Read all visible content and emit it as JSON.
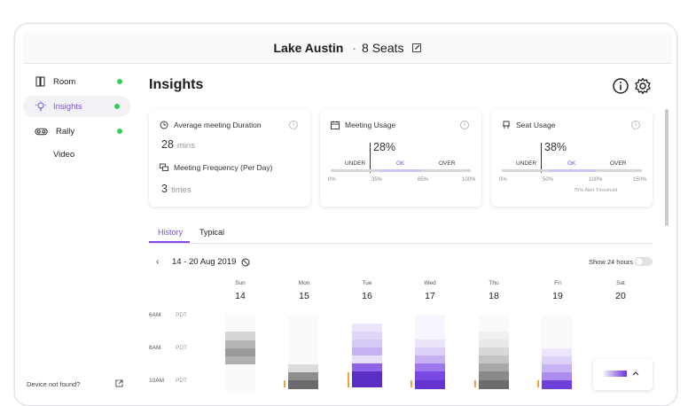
{
  "header": {
    "room_name": "Lake Austin",
    "separator": "·",
    "seats": "8 Seats"
  },
  "sidebar": {
    "items": [
      {
        "label": "Room",
        "status": "online"
      },
      {
        "label": "Insights",
        "status": "online"
      },
      {
        "label": "Rally",
        "status": "online"
      }
    ],
    "sub_items": [
      {
        "label": "Video"
      }
    ],
    "footer_link": "Device not found?"
  },
  "page": {
    "title": "Insights"
  },
  "cards": {
    "duration": {
      "title": "Average meeting Duration",
      "value": "28",
      "unit": "mins",
      "info": "i"
    },
    "frequency": {
      "title": "Meeting Frequency (Per Day)",
      "value": "3",
      "unit": "times"
    },
    "meeting_usage": {
      "title": "Meeting Usage",
      "info": "i",
      "percent": "28%",
      "value": 28,
      "labels": {
        "under": "UNDER",
        "ok": "OK",
        "over": "OVER"
      },
      "ticks": [
        "0%",
        "35%",
        "65%",
        "100%"
      ]
    },
    "seat_usage": {
      "title": "Seat Usage",
      "info": "i",
      "percent": "38%",
      "value": 38,
      "labels": {
        "under": "UNDER",
        "ok": "OK",
        "over": "OVER"
      },
      "ticks": [
        "0%",
        "50%",
        "100%",
        "150%"
      ],
      "threshold_note": "75% Alert Threshold"
    }
  },
  "tabs": [
    {
      "label": "History",
      "active": true
    },
    {
      "label": "Typical",
      "active": false
    }
  ],
  "history": {
    "date_range": "14 - 20 Aug 2019",
    "show_24_label": "Show 24 hours",
    "show_24": false,
    "days": [
      {
        "name": "Sun",
        "num": "14"
      },
      {
        "name": "Mon",
        "num": "15"
      },
      {
        "name": "Tue",
        "num": "16"
      },
      {
        "name": "Wed",
        "num": "17"
      },
      {
        "name": "Thu",
        "num": "18"
      },
      {
        "name": "Fri",
        "num": "19"
      },
      {
        "name": "Sat",
        "num": "20"
      }
    ],
    "time_labels": [
      {
        "time": "6AM",
        "tz": "PDT"
      },
      {
        "time": "8AM",
        "tz": "PDT"
      },
      {
        "time": "10AM",
        "tz": "PDT"
      }
    ]
  },
  "colors": {
    "accent": "#7d4ce8",
    "online": "#2ed153",
    "orange": "#f1a33a"
  }
}
